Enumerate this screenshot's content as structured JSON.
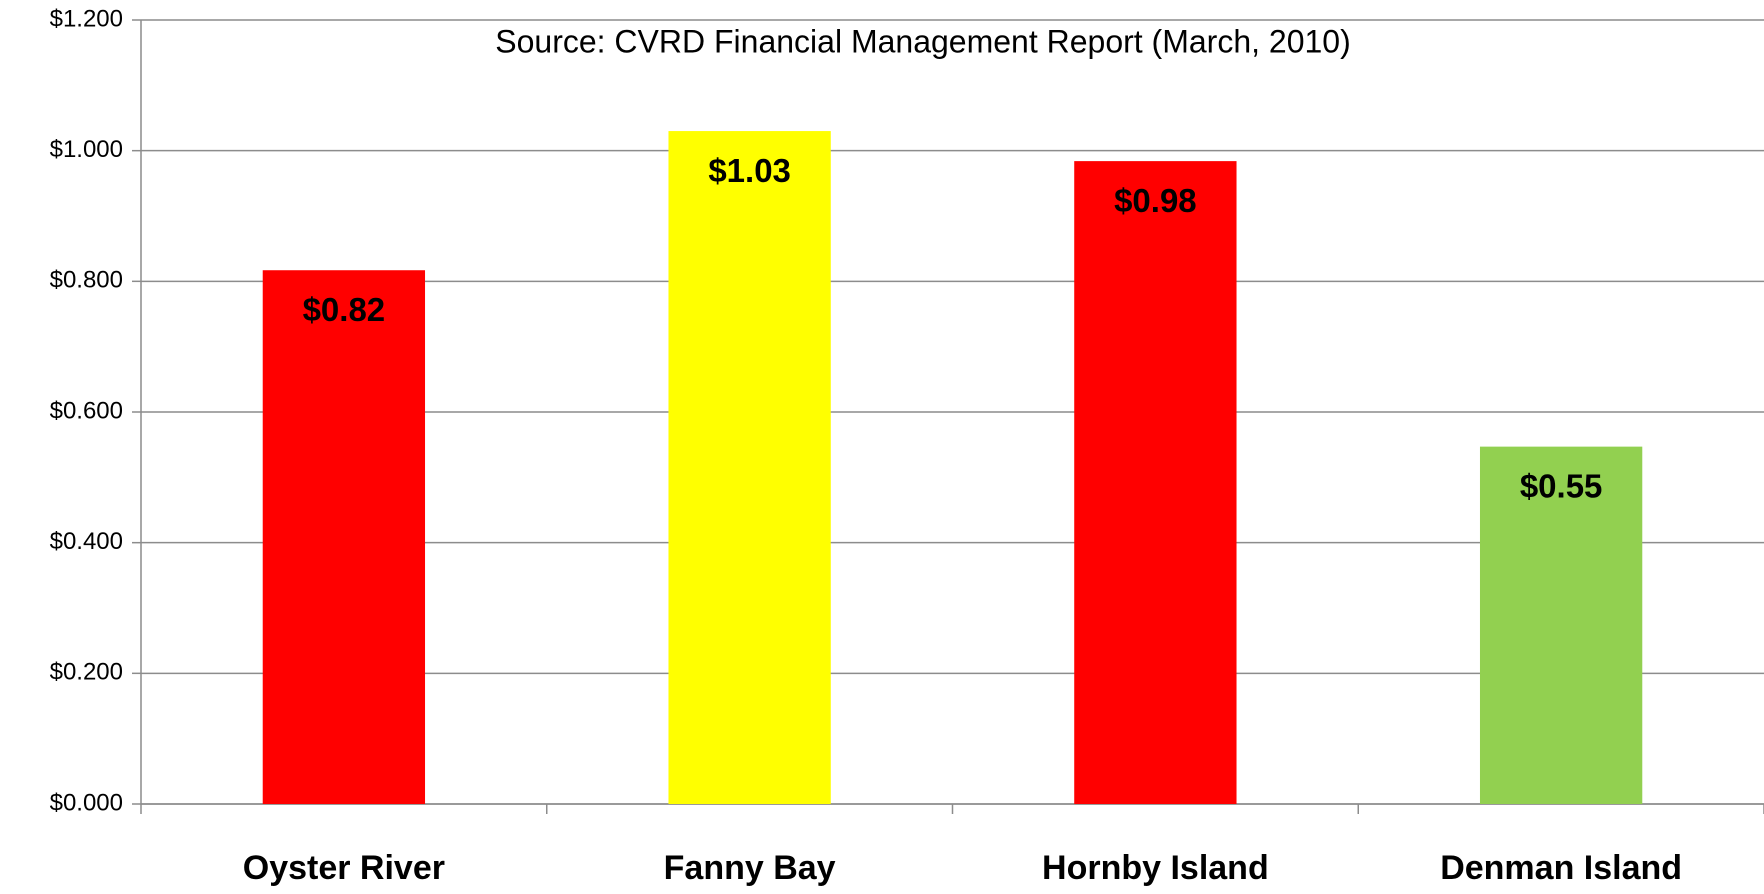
{
  "chart_data": {
    "type": "bar",
    "annotation": "Source:  CVRD Financial Management Report (March, 2010)",
    "categories": [
      "Oyster River",
      "Fanny Bay",
      "Hornby Island",
      "Denman Island"
    ],
    "values": [
      0.817,
      1.03,
      0.984,
      0.547
    ],
    "value_labels": [
      "$0.82",
      "$1.03",
      "$0.98",
      "$0.55"
    ],
    "colors": [
      "#ff0000",
      "#ffff00",
      "#ff0000",
      "#92d050"
    ],
    "ylim": [
      0,
      1.2
    ],
    "yticks": [
      {
        "value": 0,
        "label": "$0.000"
      },
      {
        "value": 0.2,
        "label": "$0.200"
      },
      {
        "value": 0.4,
        "label": "$0.400"
      },
      {
        "value": 0.6,
        "label": "$0.600"
      },
      {
        "value": 0.8,
        "label": "$0.800"
      },
      {
        "value": 1.0,
        "label": "$1.000"
      },
      {
        "value": 1.2,
        "label": "$1.200"
      }
    ],
    "grid": true
  }
}
